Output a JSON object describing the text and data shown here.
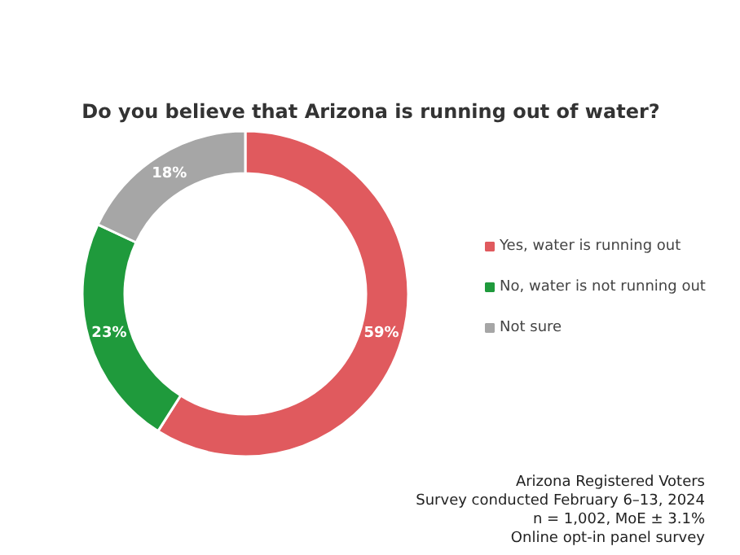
{
  "chart_data": {
    "type": "donut",
    "title": "Do you believe that Arizona is running out of water?",
    "categories": [
      "Yes, water is running out",
      "No, water is not running out",
      "Not sure"
    ],
    "values": [
      59,
      23,
      18
    ],
    "colors": [
      "#e05a5e",
      "#1f9a3c",
      "#a6a6a6"
    ],
    "value_labels": [
      "59%",
      "23%",
      "18%"
    ],
    "legend": "right",
    "annotations": [
      "Arizona Registered Voters",
      "Survey conducted February 6–13, 2024",
      "n = 1,002, MoE ± 3.1%",
      "Online opt-in panel survey"
    ]
  }
}
